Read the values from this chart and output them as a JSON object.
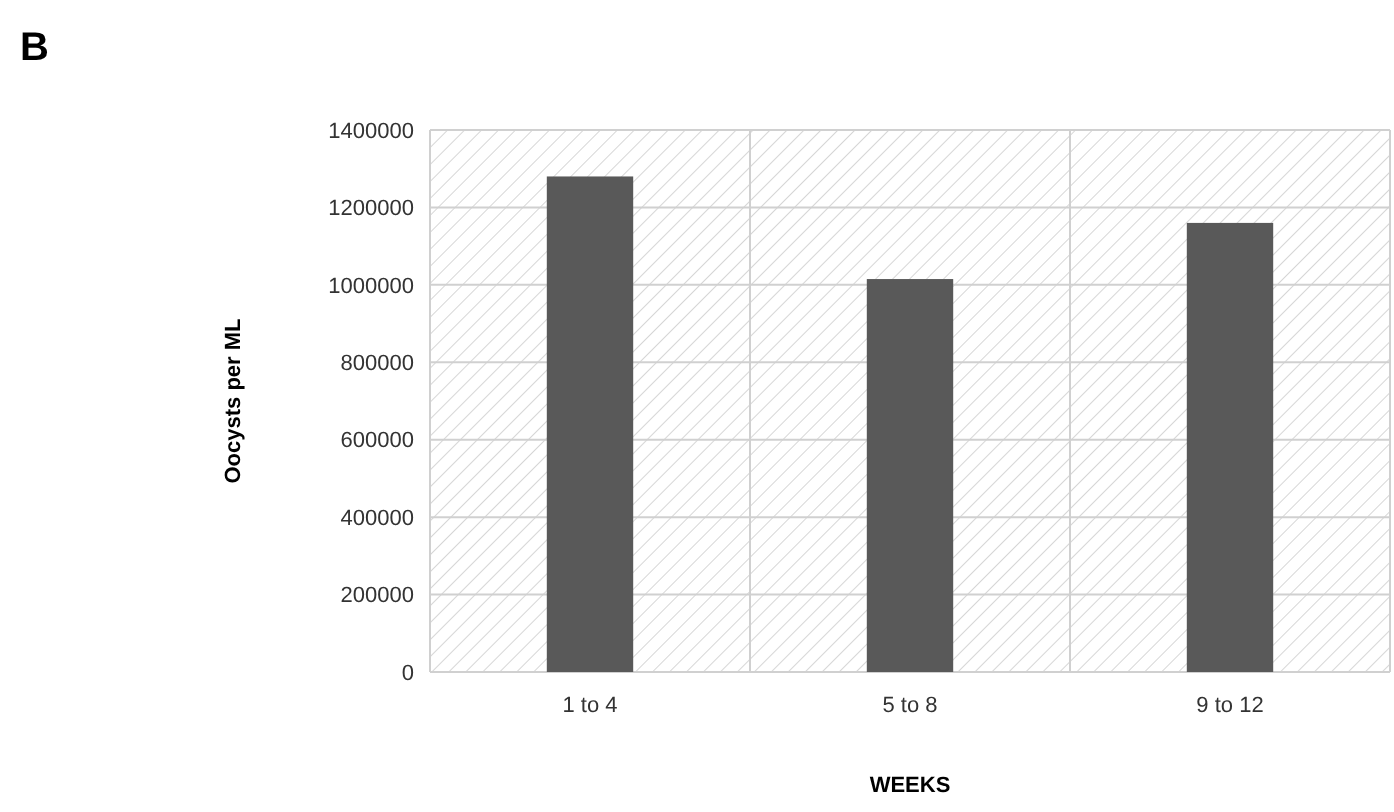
{
  "chart_data": {
    "type": "bar",
    "title": "B",
    "xlabel": "WEEKS",
    "ylabel": "Oocysts per ML",
    "categories": [
      "1 to 4",
      "5 to 8",
      "9 to 12"
    ],
    "values": [
      1280000,
      1015000,
      1160000
    ],
    "color": "#595959",
    "ylim": [
      0,
      1400000
    ],
    "yticks": [
      0,
      200000,
      400000,
      600000,
      800000,
      1000000,
      1200000,
      1400000
    ],
    "grid": true
  }
}
